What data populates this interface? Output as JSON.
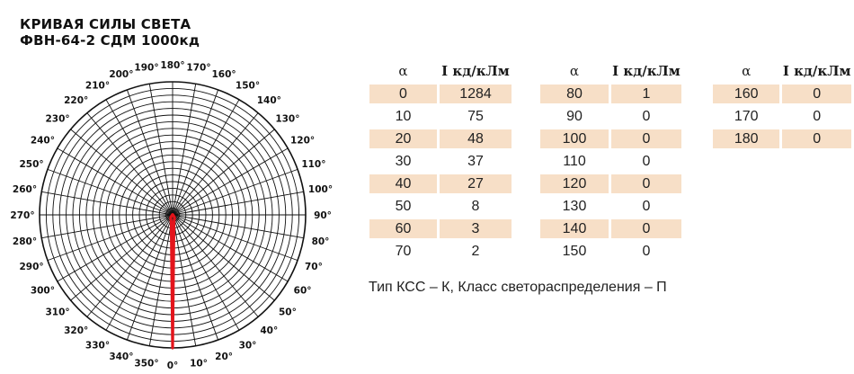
{
  "title": {
    "line1": "КРИВАЯ СИЛЫ СВЕТА",
    "line2": "ФВН-64-2 СДМ 1000кд"
  },
  "table": {
    "alpha_header": "α",
    "value_header": "I кд/кЛм",
    "columns": [
      {
        "rows": [
          [
            "0",
            "1284"
          ],
          [
            "10",
            "75"
          ],
          [
            "20",
            "48"
          ],
          [
            "30",
            "37"
          ],
          [
            "40",
            "27"
          ],
          [
            "50",
            "8"
          ],
          [
            "60",
            "3"
          ],
          [
            "70",
            "2"
          ]
        ]
      },
      {
        "rows": [
          [
            "80",
            "1"
          ],
          [
            "90",
            "0"
          ],
          [
            "100",
            "0"
          ],
          [
            "110",
            "0"
          ],
          [
            "120",
            "0"
          ],
          [
            "130",
            "0"
          ],
          [
            "140",
            "0"
          ],
          [
            "150",
            "0"
          ]
        ]
      },
      {
        "rows": [
          [
            "160",
            "0"
          ],
          [
            "170",
            "0"
          ],
          [
            "180",
            "0"
          ]
        ]
      }
    ]
  },
  "footnote": "Тип КСС – К, Класс светораспределения – П",
  "colors": {
    "curve": "#e3141b",
    "row_shade": "#f7dfc7",
    "grid": "#111111"
  },
  "chart_data": {
    "type": "polar",
    "theta_unit": "degrees",
    "theta_labels": [
      "0°",
      "10°",
      "20°",
      "30°",
      "40°",
      "50°",
      "60°",
      "70°",
      "80°",
      "90°",
      "100°",
      "110°",
      "120°",
      "130°",
      "140°",
      "150°",
      "160°",
      "170°",
      "180°",
      "190°",
      "200°",
      "210°",
      "220°",
      "230°",
      "240°",
      "250°",
      "260°",
      "270°",
      "280°",
      "290°",
      "300°",
      "310°",
      "320°",
      "330°",
      "340°",
      "350°"
    ],
    "rings": 20,
    "r_max": 1284,
    "series": [
      {
        "theta": [
          0,
          10,
          20,
          30,
          40,
          50,
          60,
          70,
          80,
          90,
          100,
          110,
          120,
          130,
          140,
          150,
          160,
          170,
          180
        ],
        "values": [
          1284,
          75,
          48,
          37,
          27,
          8,
          3,
          2,
          1,
          0,
          0,
          0,
          0,
          0,
          0,
          0,
          0,
          0,
          0
        ]
      }
    ]
  }
}
